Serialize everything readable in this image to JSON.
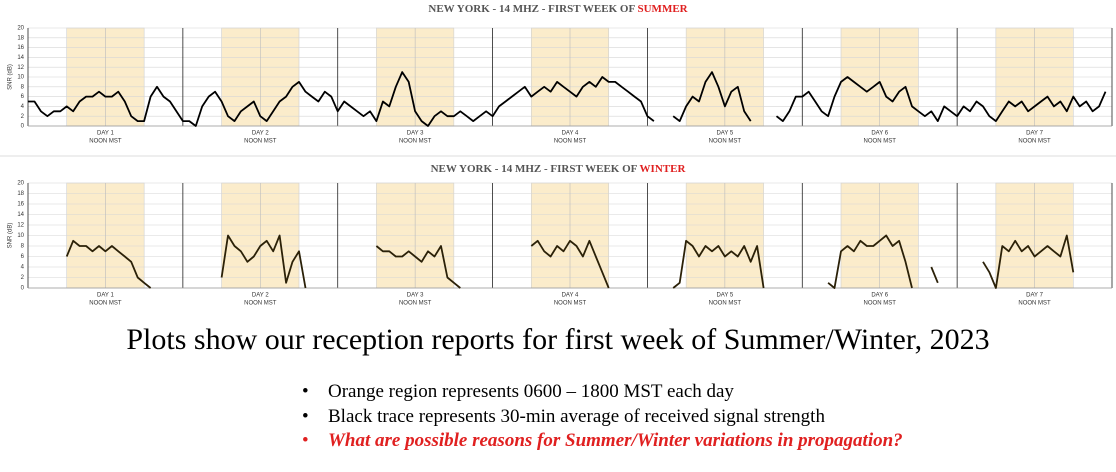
{
  "chart_data": [
    {
      "type": "line",
      "title": "NEW YORK - 14 MHZ - FIRST WEEK OF ",
      "title_highlight": "SUMMER",
      "ylabel": "SNR (dB)",
      "xlim": [
        0,
        168
      ],
      "ylim": [
        0,
        20
      ],
      "yticks": [
        0,
        2,
        4,
        6,
        8,
        10,
        12,
        14,
        16,
        18,
        20
      ],
      "grid": true,
      "xticks": [
        {
          "value": 12,
          "label": "DAY 1"
        },
        {
          "value": 36,
          "label": "DAY 2"
        },
        {
          "value": 60,
          "label": "DAY 3"
        },
        {
          "value": 84,
          "label": "DAY 4"
        },
        {
          "value": 108,
          "label": "DAY 5"
        },
        {
          "value": 132,
          "label": "DAY 6"
        },
        {
          "value": 156,
          "label": "DAY 7"
        }
      ],
      "xtick_sublabel": "NOON MST",
      "x_minor_ticks": [
        0,
        24,
        48,
        72,
        96,
        120,
        144,
        168
      ],
      "shaded_spans": [
        [
          6,
          18
        ],
        [
          30,
          42
        ],
        [
          54,
          66
        ],
        [
          78,
          90
        ],
        [
          102,
          114
        ],
        [
          126,
          138
        ],
        [
          150,
          162
        ]
      ],
      "shade_color": "#fbeccb",
      "x": [
        0,
        1,
        2,
        3,
        4,
        5,
        6,
        7,
        8,
        9,
        10,
        11,
        12,
        13,
        14,
        15,
        16,
        17,
        18,
        19,
        20,
        21,
        22,
        23,
        24,
        25,
        26,
        27,
        28,
        29,
        30,
        31,
        32,
        33,
        34,
        35,
        36,
        37,
        38,
        39,
        40,
        41,
        42,
        43,
        44,
        45,
        46,
        47,
        48,
        49,
        50,
        51,
        52,
        53,
        54,
        55,
        56,
        57,
        58,
        59,
        60,
        61,
        62,
        63,
        64,
        65,
        66,
        67,
        68,
        69,
        70,
        71,
        72,
        73,
        74,
        75,
        76,
        77,
        78,
        79,
        80,
        81,
        82,
        83,
        84,
        85,
        86,
        87,
        88,
        89,
        90,
        91,
        92,
        93,
        94,
        95,
        96,
        97,
        98,
        99,
        100,
        101,
        102,
        103,
        104,
        105,
        106,
        107,
        108,
        109,
        110,
        111,
        112,
        113,
        114,
        115,
        116,
        117,
        118,
        119,
        120,
        121,
        122,
        123,
        124,
        125,
        126,
        127,
        128,
        129,
        130,
        131,
        132,
        133,
        134,
        135,
        136,
        137,
        138,
        139,
        140,
        141,
        142,
        143,
        144,
        145,
        146,
        147,
        148,
        149,
        150,
        151,
        152,
        153,
        154,
        155,
        156,
        157,
        158,
        159,
        160,
        161,
        162,
        163,
        164,
        165,
        166,
        167
      ],
      "series": [
        {
          "color": "#000000",
          "values": [
            5,
            5,
            3,
            2,
            3,
            3,
            4,
            3,
            5,
            6,
            6,
            7,
            6,
            6,
            7,
            5,
            2,
            1,
            1,
            6,
            8,
            6,
            5,
            3,
            1,
            1,
            0,
            4,
            6,
            7,
            5,
            2,
            1,
            3,
            4,
            5,
            2,
            1,
            3,
            5,
            6,
            8,
            9,
            7,
            6,
            5,
            7,
            6,
            3,
            5,
            4,
            3,
            2,
            3,
            1,
            5,
            4,
            8,
            11,
            9,
            3,
            1,
            0,
            2,
            3,
            2,
            2,
            3,
            2,
            1,
            2,
            3,
            2,
            4,
            5,
            6,
            7,
            8,
            6,
            7,
            8,
            7,
            9,
            8,
            7,
            6,
            8,
            9,
            8,
            10,
            9,
            9,
            8,
            7,
            6,
            5,
            2,
            1,
            null,
            null,
            2,
            1,
            4,
            6,
            5,
            9,
            11,
            8,
            4,
            7,
            8,
            3,
            1,
            null,
            null,
            null,
            2,
            1,
            3,
            6,
            6,
            7,
            5,
            3,
            2,
            6,
            9,
            10,
            9,
            8,
            7,
            8,
            9,
            6,
            5,
            7,
            8,
            4,
            3,
            2,
            3,
            1,
            4,
            3,
            2,
            4,
            3,
            5,
            4,
            2,
            1,
            3,
            5,
            4,
            5,
            3,
            4,
            5,
            6,
            4,
            5,
            3,
            6,
            4,
            5,
            3,
            4,
            7
          ]
        }
      ]
    },
    {
      "type": "line",
      "title": "NEW YORK - 14 MHZ - FIRST WEEK OF ",
      "title_highlight": "WINTER",
      "ylabel": "SNR (dB)",
      "xlim": [
        0,
        168
      ],
      "ylim": [
        0,
        20
      ],
      "yticks": [
        0,
        2,
        4,
        6,
        8,
        10,
        12,
        14,
        16,
        18,
        20
      ],
      "grid": true,
      "xticks": [
        {
          "value": 12,
          "label": "DAY 1"
        },
        {
          "value": 36,
          "label": "DAY 2"
        },
        {
          "value": 60,
          "label": "DAY 3"
        },
        {
          "value": 84,
          "label": "DAY 4"
        },
        {
          "value": 108,
          "label": "DAY 5"
        },
        {
          "value": 132,
          "label": "DAY 6"
        },
        {
          "value": 156,
          "label": "DAY 7"
        }
      ],
      "xtick_sublabel": "NOON MST",
      "x_minor_ticks": [
        0,
        24,
        48,
        72,
        96,
        120,
        144,
        168
      ],
      "shaded_spans": [
        [
          6,
          18
        ],
        [
          30,
          42
        ],
        [
          54,
          66
        ],
        [
          78,
          90
        ],
        [
          102,
          114
        ],
        [
          126,
          138
        ],
        [
          150,
          162
        ]
      ],
      "shade_color": "#fbeccb",
      "x": [
        0,
        1,
        2,
        3,
        4,
        5,
        6,
        7,
        8,
        9,
        10,
        11,
        12,
        13,
        14,
        15,
        16,
        17,
        18,
        19,
        20,
        21,
        22,
        23,
        24,
        25,
        26,
        27,
        28,
        29,
        30,
        31,
        32,
        33,
        34,
        35,
        36,
        37,
        38,
        39,
        40,
        41,
        42,
        43,
        44,
        45,
        46,
        47,
        48,
        49,
        50,
        51,
        52,
        53,
        54,
        55,
        56,
        57,
        58,
        59,
        60,
        61,
        62,
        63,
        64,
        65,
        66,
        67,
        68,
        69,
        70,
        71,
        72,
        73,
        74,
        75,
        76,
        77,
        78,
        79,
        80,
        81,
        82,
        83,
        84,
        85,
        86,
        87,
        88,
        89,
        90,
        91,
        92,
        93,
        94,
        95,
        96,
        97,
        98,
        99,
        100,
        101,
        102,
        103,
        104,
        105,
        106,
        107,
        108,
        109,
        110,
        111,
        112,
        113,
        114,
        115,
        116,
        117,
        118,
        119,
        120,
        121,
        122,
        123,
        124,
        125,
        126,
        127,
        128,
        129,
        130,
        131,
        132,
        133,
        134,
        135,
        136,
        137,
        138,
        139,
        140,
        141,
        142,
        143,
        144,
        145,
        146,
        147,
        148,
        149,
        150,
        151,
        152,
        153,
        154,
        155,
        156,
        157,
        158,
        159,
        160,
        161,
        162,
        163,
        164,
        165,
        166,
        167
      ],
      "series": [
        {
          "color": "#2b2108",
          "values": [
            null,
            null,
            null,
            null,
            null,
            null,
            6,
            9,
            8,
            8,
            7,
            8,
            7,
            8,
            7,
            6,
            5,
            2,
            1,
            0,
            null,
            null,
            null,
            null,
            null,
            null,
            null,
            null,
            null,
            null,
            2,
            10,
            8,
            7,
            5,
            6,
            8,
            9,
            7,
            10,
            1,
            5,
            7,
            0,
            null,
            null,
            null,
            null,
            null,
            null,
            null,
            null,
            null,
            null,
            8,
            7,
            7,
            6,
            6,
            7,
            6,
            5,
            7,
            6,
            8,
            2,
            1,
            0,
            null,
            null,
            null,
            null,
            null,
            null,
            null,
            null,
            null,
            null,
            8,
            9,
            7,
            6,
            8,
            7,
            9,
            8,
            6,
            9,
            6,
            3,
            0,
            null,
            null,
            null,
            null,
            null,
            null,
            null,
            null,
            null,
            0,
            1,
            9,
            8,
            6,
            8,
            7,
            8,
            6,
            7,
            6,
            8,
            5,
            8,
            0,
            null,
            null,
            null,
            null,
            null,
            null,
            null,
            null,
            null,
            1,
            0,
            7,
            8,
            7,
            9,
            8,
            8,
            9,
            10,
            8,
            9,
            5,
            0,
            null,
            null,
            4,
            1,
            null,
            null,
            null,
            null,
            null,
            null,
            5,
            3,
            0,
            8,
            7,
            9,
            7,
            8,
            6,
            7,
            8,
            7,
            6,
            10,
            3,
            null,
            null,
            null,
            null,
            null
          ]
        }
      ]
    }
  ],
  "caption": "Plots show our reception reports for first week of Summer/Winter, 2023",
  "bullets": [
    "Orange region represents 0600 – 1800 MST each day",
    "Black trace represents 30-min average of received signal strength",
    "What are possible reasons for Summer/Winter variations in propagation?"
  ]
}
